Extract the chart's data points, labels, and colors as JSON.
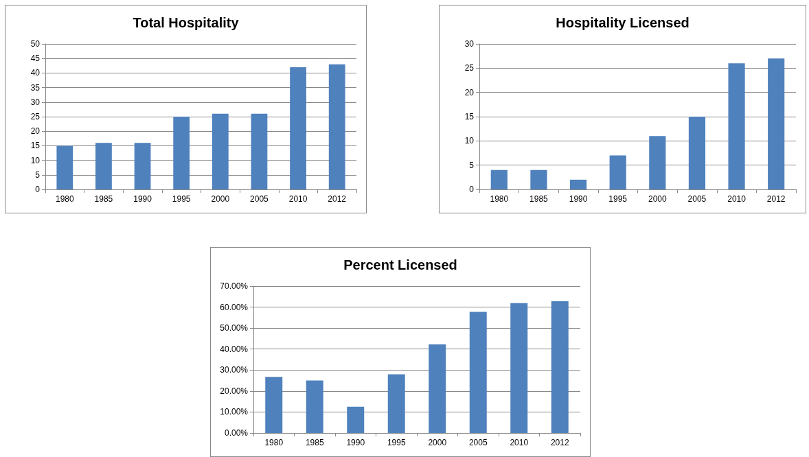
{
  "chart_data": [
    {
      "type": "bar",
      "title": "Total Hospitality",
      "categories": [
        "1980",
        "1985",
        "1990",
        "1995",
        "2000",
        "2005",
        "2010",
        "2012"
      ],
      "values": [
        15,
        16,
        16,
        25,
        26,
        26,
        42,
        43
      ],
      "color": "#4f81bd",
      "ylim": [
        0,
        50
      ],
      "yticks": [
        0,
        5,
        10,
        15,
        20,
        25,
        30,
        35,
        40,
        45,
        50
      ],
      "grid": "y"
    },
    {
      "type": "bar",
      "title": "Hospitality Licensed",
      "categories": [
        "1980",
        "1985",
        "1990",
        "1995",
        "2000",
        "2005",
        "2010",
        "2012"
      ],
      "values": [
        4,
        4,
        2,
        7,
        11,
        15,
        26,
        27
      ],
      "color": "#4f81bd",
      "ylim": [
        0,
        30
      ],
      "yticks": [
        0,
        5,
        10,
        15,
        20,
        25,
        30
      ],
      "grid": "y"
    },
    {
      "type": "bar",
      "title": "Percent Licensed",
      "categories": [
        "1980",
        "1985",
        "1990",
        "1995",
        "2000",
        "2005",
        "2010",
        "2012"
      ],
      "values": [
        26.7,
        25,
        12.5,
        28,
        42.3,
        57.7,
        61.9,
        62.8
      ],
      "color": "#4f81bd",
      "ylim": [
        0,
        70
      ],
      "yticks": [
        {
          "value": 0,
          "label": "0.00%"
        },
        {
          "value": 10,
          "label": "10.00%"
        },
        {
          "value": 20,
          "label": "20.00%"
        },
        {
          "value": 30,
          "label": "30.00%"
        },
        {
          "value": 40,
          "label": "40.00%"
        },
        {
          "value": 50,
          "label": "50.00%"
        },
        {
          "value": 60,
          "label": "60.00%"
        },
        {
          "value": 70,
          "label": "70.00%"
        }
      ],
      "grid": "y"
    }
  ]
}
